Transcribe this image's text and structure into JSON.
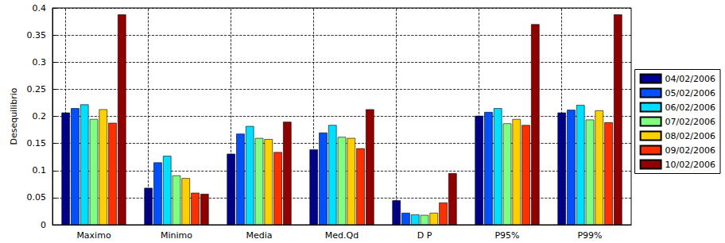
{
  "chart_data": {
    "type": "bar",
    "y_label": "Desequilibrio",
    "categories": [
      "Maximo",
      "Minimo",
      "Media",
      "Med.Qd",
      "D P",
      "P95%",
      "P99%"
    ],
    "series": [
      {
        "name": "04/02/2006",
        "color": "#000090",
        "values": [
          0.207,
          0.068,
          0.131,
          0.139,
          0.045,
          0.201,
          0.207
        ]
      },
      {
        "name": "05/02/2006",
        "color": "#0050ff",
        "values": [
          0.215,
          0.115,
          0.168,
          0.17,
          0.022,
          0.208,
          0.212
        ]
      },
      {
        "name": "06/02/2006",
        "color": "#00dfff",
        "values": [
          0.222,
          0.127,
          0.182,
          0.184,
          0.019,
          0.215,
          0.221
        ]
      },
      {
        "name": "07/02/2006",
        "color": "#80ff80",
        "values": [
          0.195,
          0.091,
          0.16,
          0.162,
          0.018,
          0.187,
          0.194
        ]
      },
      {
        "name": "08/02/2006",
        "color": "#ffd000",
        "values": [
          0.213,
          0.086,
          0.158,
          0.16,
          0.022,
          0.195,
          0.211
        ]
      },
      {
        "name": "09/02/2006",
        "color": "#ff3000",
        "values": [
          0.188,
          0.059,
          0.134,
          0.141,
          0.041,
          0.184,
          0.189
        ]
      },
      {
        "name": "10/02/2006",
        "color": "#900000",
        "values": [
          0.388,
          0.057,
          0.19,
          0.213,
          0.095,
          0.37,
          0.388
        ]
      }
    ],
    "ylim": [
      0,
      0.4
    ],
    "yticks": [
      0,
      0.05,
      0.1,
      0.15,
      0.2,
      0.25,
      0.3,
      0.35,
      0.4
    ],
    "grid": true,
    "legend": "right"
  }
}
